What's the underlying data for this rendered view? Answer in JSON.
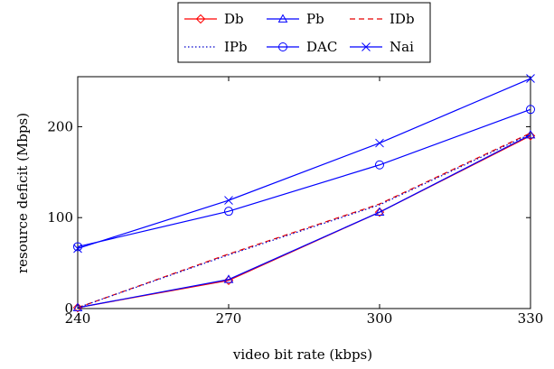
{
  "chart_data": {
    "type": "line",
    "title": "",
    "xlabel": "video bit rate (kbps)",
    "ylabel": "resource deficit (Mbps)",
    "x": [
      240,
      270,
      300,
      330
    ],
    "xticks": [
      240,
      270,
      300,
      330
    ],
    "yticks": [
      0,
      100,
      200
    ],
    "xlim": [
      240,
      330
    ],
    "ylim": [
      0,
      255
    ],
    "grid": false,
    "legend_position": "top-center",
    "series": [
      {
        "name": "Db",
        "values": [
          1,
          31,
          106,
          190
        ],
        "color": "#ff0000",
        "style": "solid",
        "marker": "diamond"
      },
      {
        "name": "Pb",
        "values": [
          1,
          32,
          106,
          191
        ],
        "color": "#0000ff",
        "style": "solid",
        "marker": "triangle"
      },
      {
        "name": "IDb",
        "values": [
          1,
          60,
          115,
          193
        ],
        "color": "#e60000",
        "style": "dashed",
        "marker": "none"
      },
      {
        "name": "IPb",
        "values": [
          1,
          59,
          114,
          192
        ],
        "color": "#0000cc",
        "style": "dotted",
        "marker": "none"
      },
      {
        "name": "DAC",
        "values": [
          68,
          107,
          158,
          219
        ],
        "color": "#0000ff",
        "style": "solid",
        "marker": "circle"
      },
      {
        "name": "Nai",
        "values": [
          66,
          119,
          182,
          253
        ],
        "color": "#0000ff",
        "style": "solid",
        "marker": "x"
      }
    ]
  }
}
